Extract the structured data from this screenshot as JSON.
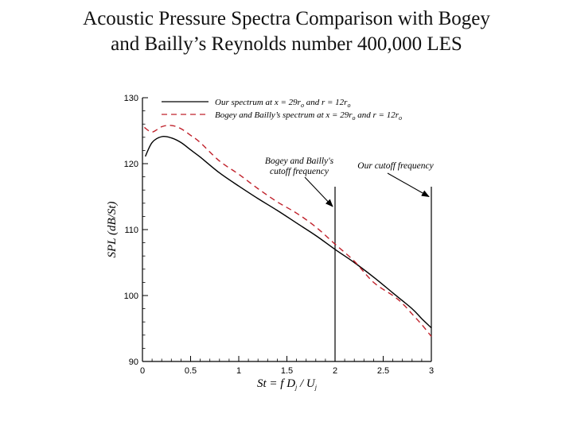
{
  "slide": {
    "title_line1": "Acoustic Pressure Spectra Comparison with Bogey",
    "title_line2": "and Bailly’s Reynolds number 400,000 LES"
  },
  "chart_data": {
    "type": "line",
    "xlabel_parts": [
      "St = f D",
      "j",
      " / U",
      "j"
    ],
    "ylabel": "SPL (dB/St)",
    "xlim": [
      0,
      3
    ],
    "ylim": [
      90,
      130
    ],
    "x_ticks": [
      0,
      0.5,
      1,
      1.5,
      2,
      2.5,
      3
    ],
    "x_tick_labels": [
      "0",
      "0.5",
      "1",
      "1.5",
      "2",
      "2.5",
      "3"
    ],
    "y_ticks": [
      90,
      100,
      110,
      120,
      130
    ],
    "y_tick_labels": [
      "90",
      "100",
      "110",
      "120",
      "130"
    ],
    "grid": false,
    "legend_position": "top-right",
    "series": [
      {
        "name_parts": [
          "Our spectrum at x = 29r",
          "o",
          " and r = 12r",
          "o"
        ],
        "color": "#000000",
        "style": "solid",
        "x": [
          0.03,
          0.1,
          0.2,
          0.3,
          0.4,
          0.5,
          0.6,
          0.8,
          1.0,
          1.2,
          1.4,
          1.6,
          1.8,
          2.0,
          2.2,
          2.4,
          2.6,
          2.8,
          2.9,
          3.0
        ],
        "y": [
          121.1,
          123.2,
          124.1,
          123.9,
          123.2,
          122.1,
          121.0,
          118.6,
          116.6,
          114.7,
          112.9,
          111.0,
          109.1,
          107.0,
          105.0,
          102.8,
          100.4,
          98.0,
          96.5,
          95.1
        ]
      },
      {
        "name_parts": [
          "Bogey and Bailly’s spectrum at x = 29r",
          "o",
          " and r = 12r",
          "o"
        ],
        "color": "#c0202a",
        "style": "dashed",
        "x": [
          0.02,
          0.1,
          0.2,
          0.3,
          0.4,
          0.5,
          0.6,
          0.8,
          1.0,
          1.2,
          1.4,
          1.6,
          1.8,
          2.0,
          2.2,
          2.4,
          2.6,
          2.7,
          2.8,
          2.9,
          3.0
        ],
        "y": [
          125.5,
          124.8,
          125.6,
          125.8,
          125.3,
          124.3,
          123.2,
          120.4,
          118.4,
          116.2,
          114.2,
          112.5,
          110.4,
          107.8,
          105.2,
          102.0,
          100.0,
          98.8,
          97.2,
          95.6,
          93.8
        ]
      }
    ],
    "vertical_lines": [
      {
        "x": 2.0,
        "y_from": 90,
        "y_to": 116.5
      },
      {
        "x": 3.0,
        "y_from": 90,
        "y_to": 116.5
      }
    ],
    "annotations": [
      {
        "lines": [
          "Bogey and Bailly's",
          "cutoff frequency"
        ],
        "arrow_to_x": 2.0,
        "arrow_to_y": 113.5
      },
      {
        "lines": [
          "Our cutoff frequency"
        ],
        "arrow_to_x": 3.0,
        "arrow_to_y": 115.0
      }
    ]
  }
}
